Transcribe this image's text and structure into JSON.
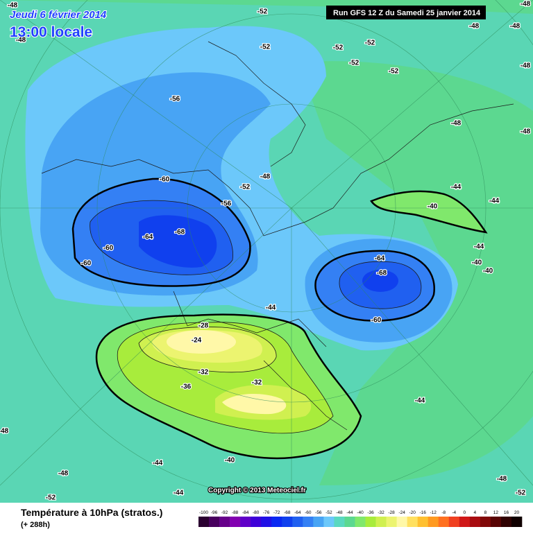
{
  "header": {
    "date": "Jeudi 6 février 2014",
    "time": "13:00 locale",
    "run": "Run GFS 12 Z du Samedi 25 janvier 2014"
  },
  "map": {
    "contour_labels": [
      -48,
      -52,
      -48,
      -48,
      -52,
      -52,
      -52,
      -48,
      -48,
      -52,
      -52,
      -48,
      -56,
      -48,
      -48,
      -48,
      -52,
      -44,
      -44,
      -40,
      -60,
      -56,
      -68,
      -64,
      -60,
      -60,
      -44,
      -64,
      -68,
      -40,
      -40,
      -60,
      -44,
      -28,
      -24,
      -32,
      -32,
      -36,
      -44,
      -48,
      -44,
      -40,
      -48,
      -44,
      -48,
      -52,
      -52
    ]
  },
  "copyright": "Copyright © 2013 Meteociel.fr",
  "footer": {
    "title": "Température à 10hPa (stratos.)",
    "lead_time": "(+ 288h)"
  },
  "color_scale": {
    "labels": [
      -100,
      -96,
      -92,
      -88,
      -84,
      -80,
      -76,
      -72,
      -68,
      -64,
      -60,
      -56,
      -52,
      -48,
      -44,
      -40,
      -36,
      -32,
      -28,
      -24,
      -20,
      -16,
      -12,
      -8,
      -4,
      0,
      4,
      8,
      12,
      16,
      20
    ],
    "colors": [
      "#2a0030",
      "#48005e",
      "#66008a",
      "#8200b0",
      "#6000c8",
      "#3e00d8",
      "#2010e6",
      "#0a28f2",
      "#1040ee",
      "#2060f0",
      "#3480f4",
      "#48a4f4",
      "#6cc8fa",
      "#5ad8c0",
      "#5cd890",
      "#80e86c",
      "#a8ec3c",
      "#d0f050",
      "#ecf470",
      "#fff8a8",
      "#ffe060",
      "#ffc030",
      "#ff9a20",
      "#ff7020",
      "#f04020",
      "#d01818",
      "#a80c10",
      "#800808",
      "#580404",
      "#300202",
      "#100000"
    ]
  }
}
